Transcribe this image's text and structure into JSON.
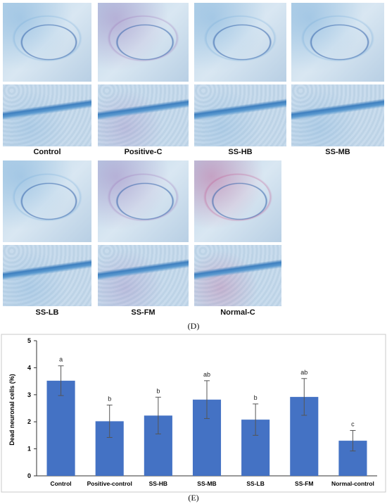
{
  "figure": {
    "panel_d_label": "(D)",
    "panel_e_label": "(E)",
    "micrographs": [
      {
        "name": "Control",
        "tone": "blue"
      },
      {
        "name": "Positive-C",
        "tone": "purple"
      },
      {
        "name": "SS-HB",
        "tone": "blue"
      },
      {
        "name": "SS-MB",
        "tone": "blue"
      },
      {
        "name": "SS-LB",
        "tone": "blue"
      },
      {
        "name": "SS-FM",
        "tone": "purple"
      },
      {
        "name": "Normal-C",
        "tone": "red"
      }
    ]
  },
  "colors": {
    "bar": "#4472C4",
    "stain_blue": "#6fa8d8",
    "stain_purple": "#9a6fb5",
    "stain_red": "#c04a86"
  },
  "chart_data": {
    "type": "bar",
    "categories": [
      "Control",
      "Positive-control",
      "SS-HB",
      "SS-MB",
      "SS-LB",
      "SS-FM",
      "Normal-control"
    ],
    "values": [
      3.52,
      2.02,
      2.23,
      2.82,
      2.08,
      2.92,
      1.3
    ],
    "errors": [
      0.55,
      0.6,
      0.68,
      0.7,
      0.58,
      0.68,
      0.38
    ],
    "significance_letters": [
      "a",
      "b",
      "b",
      "ab",
      "b",
      "ab",
      "c"
    ],
    "ylabel": "Dead neuronal cells (%)",
    "xlabel": "",
    "ylim": [
      0,
      5
    ],
    "yticks": [
      "0",
      "1",
      "2",
      "3",
      "4",
      "5"
    ],
    "grid": false
  }
}
